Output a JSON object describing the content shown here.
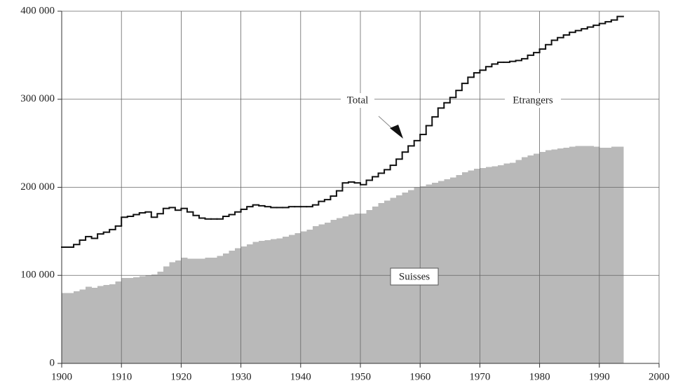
{
  "chart_data": {
    "type": "step-area",
    "x": [
      1900,
      1901,
      1902,
      1903,
      1904,
      1905,
      1906,
      1907,
      1908,
      1909,
      1910,
      1911,
      1912,
      1913,
      1914,
      1915,
      1916,
      1917,
      1918,
      1919,
      1920,
      1921,
      1922,
      1923,
      1924,
      1925,
      1926,
      1927,
      1928,
      1929,
      1930,
      1931,
      1932,
      1933,
      1934,
      1935,
      1936,
      1937,
      1938,
      1939,
      1940,
      1941,
      1942,
      1943,
      1944,
      1945,
      1946,
      1947,
      1948,
      1949,
      1950,
      1951,
      1952,
      1953,
      1954,
      1955,
      1956,
      1957,
      1958,
      1959,
      1960,
      1961,
      1962,
      1963,
      1964,
      1965,
      1966,
      1967,
      1968,
      1969,
      1970,
      1971,
      1972,
      1973,
      1974,
      1975,
      1976,
      1977,
      1978,
      1979,
      1980,
      1981,
      1982,
      1983,
      1984,
      1985,
      1986,
      1987,
      1988,
      1989,
      1990,
      1991,
      1992,
      1993
    ],
    "series": [
      {
        "name": "Total",
        "color": "#111111",
        "values": [
          132000,
          132000,
          135000,
          140000,
          144000,
          142000,
          147000,
          149000,
          152000,
          156000,
          166000,
          167000,
          169000,
          171000,
          172000,
          166000,
          170000,
          176000,
          177000,
          174000,
          176000,
          172000,
          168000,
          165000,
          164000,
          164000,
          164000,
          167000,
          169000,
          172000,
          175000,
          178000,
          180000,
          179000,
          178000,
          177000,
          177000,
          177000,
          178000,
          178000,
          178000,
          178000,
          180000,
          184000,
          186000,
          190000,
          196000,
          205000,
          206000,
          205000,
          203000,
          208000,
          212000,
          216000,
          220000,
          225000,
          232000,
          240000,
          247000,
          253000,
          260000,
          270000,
          280000,
          290000,
          296000,
          302000,
          310000,
          318000,
          325000,
          330000,
          333000,
          337000,
          340000,
          342000,
          342000,
          343000,
          344000,
          346000,
          350000,
          353000,
          357000,
          362000,
          367000,
          370000,
          373000,
          376000,
          378000,
          380000,
          382000,
          384000,
          386000,
          388000,
          390000,
          394000
        ]
      },
      {
        "name": "Suisses",
        "color": "#b9b9b9",
        "values": [
          80000,
          80000,
          82000,
          84000,
          87000,
          86000,
          88000,
          89000,
          90000,
          93000,
          97000,
          97000,
          98000,
          99000,
          100000,
          101000,
          104000,
          110000,
          115000,
          117000,
          120000,
          119000,
          119000,
          119000,
          120000,
          120000,
          122000,
          125000,
          128000,
          131000,
          133000,
          135000,
          138000,
          139000,
          140000,
          141000,
          142000,
          144000,
          146000,
          148000,
          150000,
          152000,
          156000,
          158000,
          160000,
          163000,
          165000,
          167000,
          169000,
          170000,
          170000,
          174000,
          178000,
          182000,
          185000,
          188000,
          191000,
          194000,
          197000,
          200000,
          201000,
          203000,
          205000,
          207000,
          209000,
          211000,
          214000,
          217000,
          219000,
          221000,
          222000,
          223000,
          224000,
          225000,
          227000,
          228000,
          231000,
          234000,
          236000,
          238000,
          240000,
          242000,
          243000,
          244000,
          245000,
          246000,
          247000,
          247000,
          247000,
          246000,
          245000,
          245000,
          246000,
          246000
        ]
      }
    ],
    "annotations": [
      "Etrangers"
    ],
    "xlim": [
      1900,
      2000
    ],
    "xticks": [
      1900,
      1910,
      1920,
      1930,
      1940,
      1950,
      1960,
      1970,
      1980,
      1990,
      2000
    ],
    "ylim": [
      0,
      400000
    ],
    "yticks": [
      0,
      {
        "value": 100000,
        "label": "100 000"
      },
      {
        "value": 200000,
        "label": "200 000"
      },
      {
        "value": 300000,
        "label": "300 000"
      },
      {
        "value": 400000,
        "label": "400 000"
      }
    ],
    "grid": true
  }
}
